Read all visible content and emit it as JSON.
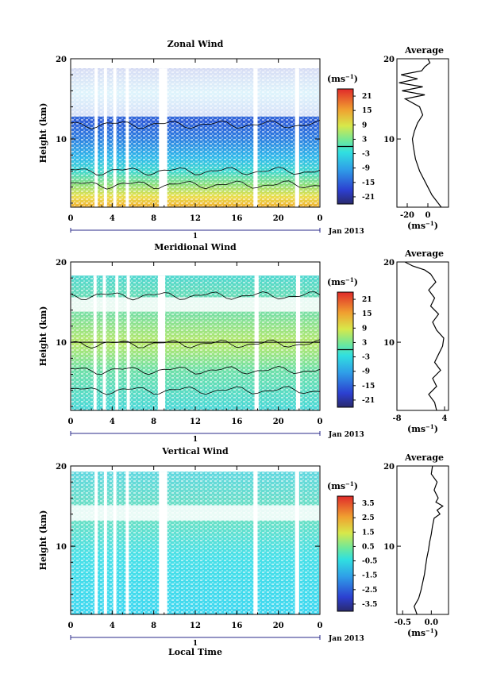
{
  "chart_data": [
    {
      "type": "heatmap",
      "title": "Zonal Wind",
      "ylabel": "Height (km)",
      "xlabel": "",
      "xlim": [
        0,
        24
      ],
      "ylim": [
        1.5,
        20
      ],
      "xticks": [
        "0",
        "4",
        "8",
        "12",
        "16",
        "20",
        "0"
      ],
      "xtick_values": [
        0,
        4,
        8,
        12,
        16,
        20,
        24
      ],
      "yticks": [
        "10",
        "20"
      ],
      "ytick_values": [
        10,
        20
      ],
      "day_label": "1",
      "date_label": "Jan 2013",
      "colorbar": {
        "unit": "(ms",
        "unit_exp": "−1",
        "unit_close": ")",
        "ticks": [
          "21",
          "15",
          "9",
          "3",
          "-3",
          "-9",
          "-15",
          "-21"
        ],
        "min": -24,
        "max": 24,
        "zero_line": true
      },
      "data_gaps_hours": [
        [
          2.3,
          2.6
        ],
        [
          3.2,
          3.5
        ],
        [
          4.1,
          4.4
        ],
        [
          5.3,
          5.6
        ],
        [
          8.5,
          9.3
        ],
        [
          17.6,
          18.0
        ],
        [
          21.6,
          22.0
        ]
      ],
      "profile": {
        "title": "Average",
        "xlim": [
          -30,
          20
        ],
        "xticks": [
          "-20",
          "0"
        ],
        "xtick_values": [
          -20,
          0
        ],
        "yticks": [
          "10",
          "20"
        ],
        "xlabel": "(ms",
        "xlabel_exp": "−1",
        "xlabel_close": ")",
        "heights": [
          1.5,
          3,
          4.5,
          6,
          7.5,
          9,
          10,
          11,
          12,
          13,
          14,
          15,
          15.5,
          16,
          16.5,
          17,
          17.5,
          18,
          18.5,
          19,
          19.5,
          20
        ],
        "values": [
          13,
          4,
          -2,
          -8,
          -12,
          -14,
          -15,
          -13,
          -10,
          -5,
          -8,
          -22,
          -3,
          -25,
          -5,
          -28,
          -10,
          -26,
          -6,
          -3,
          2,
          0
        ]
      }
    },
    {
      "type": "heatmap",
      "title": "Meridional Wind",
      "ylabel": "Height (km)",
      "xlabel": "",
      "xlim": [
        0,
        24
      ],
      "ylim": [
        1.5,
        20
      ],
      "xticks": [
        "0",
        "4",
        "8",
        "12",
        "16",
        "20",
        "0"
      ],
      "xtick_values": [
        0,
        4,
        8,
        12,
        16,
        20,
        24
      ],
      "yticks": [
        "10",
        "20"
      ],
      "ytick_values": [
        10,
        20
      ],
      "day_label": "1",
      "date_label": "Jan 2013",
      "colorbar": {
        "unit": "(ms",
        "unit_exp": "−1",
        "unit_close": ")",
        "ticks": [
          "21",
          "15",
          "9",
          "3",
          "-3",
          "-9",
          "-15",
          "-21"
        ],
        "min": -24,
        "max": 24,
        "zero_line": true
      },
      "data_gaps_hours": [
        [
          2.2,
          2.5
        ],
        [
          3.1,
          3.4
        ],
        [
          4.3,
          4.6
        ],
        [
          5.4,
          5.7
        ],
        [
          8.4,
          9.1
        ],
        [
          17.7,
          18.1
        ],
        [
          21.7,
          22.1
        ]
      ],
      "profile": {
        "title": "Average",
        "xlim": [
          -8,
          5
        ],
        "xticks": [
          "-8",
          "4"
        ],
        "xtick_values": [
          -8,
          4
        ],
        "yticks": [
          "10",
          "20"
        ],
        "xlabel": "(ms",
        "xlabel_exp": "−1",
        "xlabel_close": ")",
        "heights": [
          1.5,
          2.5,
          3.5,
          4.5,
          5.5,
          6.5,
          7.5,
          8.5,
          9.5,
          10.5,
          11.5,
          12.5,
          13.5,
          14.5,
          15.5,
          16.5,
          17.5,
          18.5,
          19,
          19.5,
          20
        ],
        "values": [
          2,
          1.5,
          0,
          2,
          1,
          3,
          1.5,
          2.5,
          3.5,
          3.8,
          2,
          1,
          2.5,
          0.5,
          1.5,
          0,
          1.8,
          0.5,
          -1,
          -4,
          -6
        ]
      }
    },
    {
      "type": "heatmap",
      "title": "Vertical Wind",
      "ylabel": "Height (km)",
      "xlabel": "Local Time",
      "xlim": [
        0,
        24
      ],
      "ylim": [
        1.5,
        20
      ],
      "xticks": [
        "0",
        "4",
        "8",
        "12",
        "16",
        "20",
        "0"
      ],
      "xtick_values": [
        0,
        4,
        8,
        12,
        16,
        20,
        24
      ],
      "yticks": [
        "10",
        "20"
      ],
      "ytick_values": [
        10,
        20
      ],
      "day_label": "1",
      "date_label": "Jan 2013",
      "colorbar": {
        "unit": "(ms",
        "unit_exp": "−1",
        "unit_close": ")",
        "ticks": [
          "3.5",
          "2.5",
          "1.5",
          "0.5",
          "-0.5",
          "-1.5",
          "-2.5",
          "-3.5"
        ],
        "min": -4,
        "max": 4,
        "zero_line": false
      },
      "data_gaps_hours": [
        [
          2.3,
          2.6
        ],
        [
          3.2,
          3.5
        ],
        [
          4.1,
          4.4
        ],
        [
          5.3,
          5.6
        ],
        [
          8.5,
          9.3
        ],
        [
          17.6,
          18.0
        ],
        [
          21.6,
          22.0
        ]
      ],
      "profile": {
        "title": "Average",
        "xlim": [
          -0.6,
          0.3
        ],
        "xticks": [
          "-0.5",
          "0.0"
        ],
        "xtick_values": [
          -0.5,
          0
        ],
        "yticks": [
          "10",
          "20"
        ],
        "xlabel": "(ms",
        "xlabel_exp": "−1",
        "xlabel_close": ")",
        "heights": [
          1.5,
          2.5,
          3.5,
          4.5,
          5.5,
          6.5,
          7.5,
          8.5,
          9.5,
          10.5,
          11.5,
          12.5,
          13.5,
          14,
          14.5,
          15,
          15.5,
          16,
          17,
          18,
          19,
          20
        ],
        "values": [
          -0.25,
          -0.3,
          -0.22,
          -0.18,
          -0.15,
          -0.12,
          -0.1,
          -0.08,
          -0.05,
          -0.03,
          0,
          0.02,
          0.05,
          0.15,
          0.1,
          0.2,
          0.08,
          0.12,
          0.05,
          0.1,
          0.0,
          0.02
        ]
      }
    }
  ]
}
